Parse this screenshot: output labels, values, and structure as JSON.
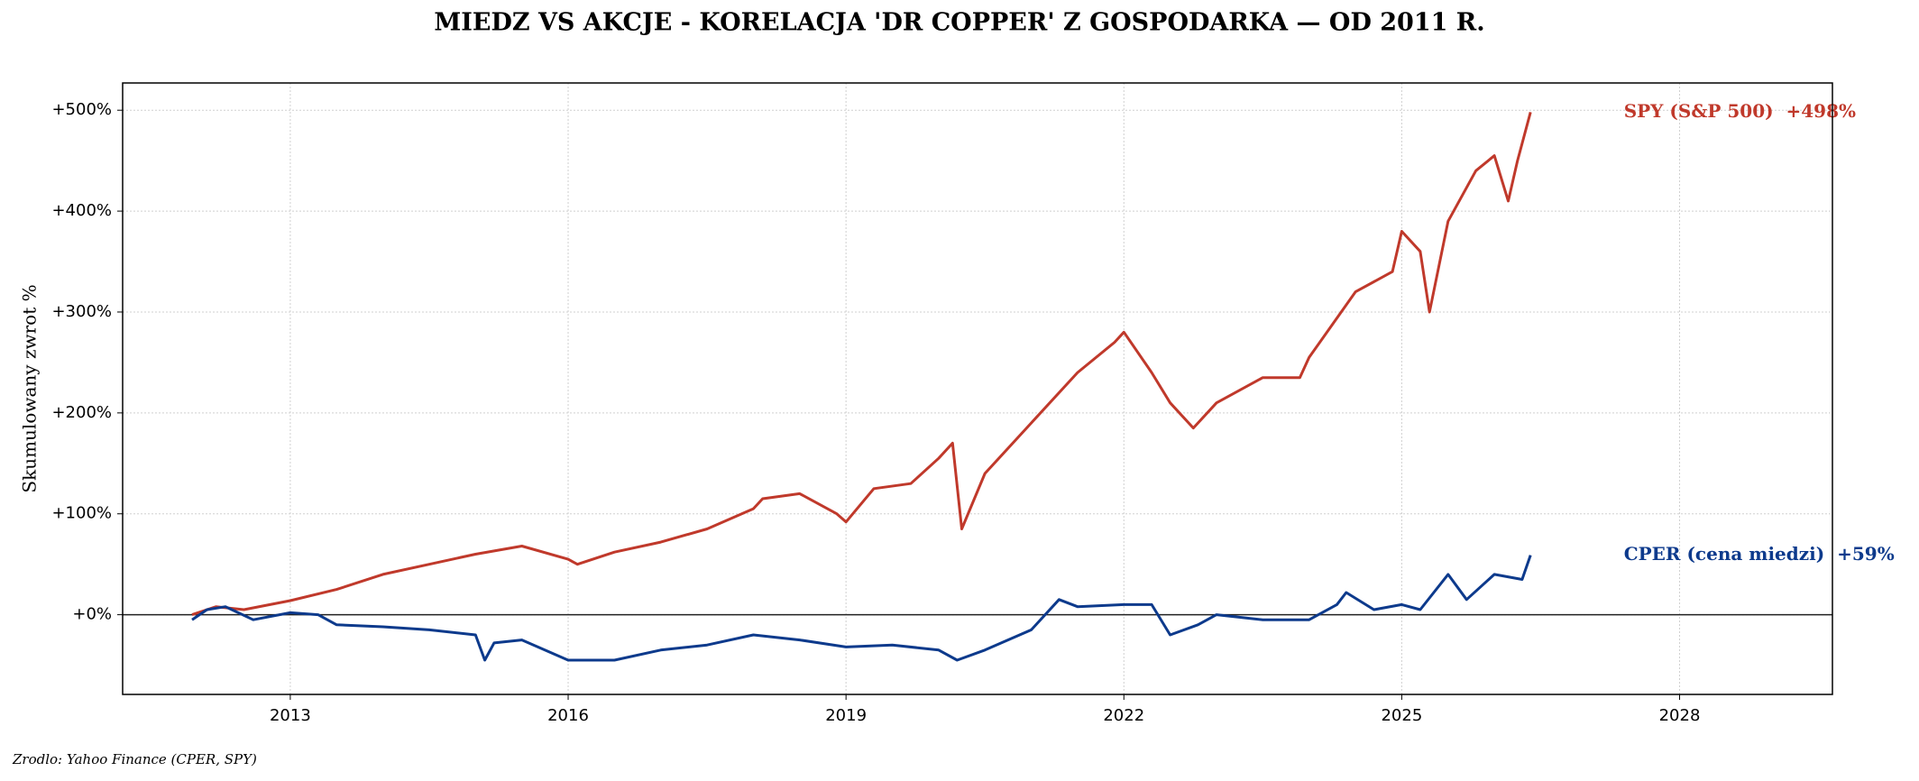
{
  "chart_data": {
    "type": "line",
    "title": "MIEDZ VS AKCJE - KORELACJA 'DR COPPER' Z GOSPODARKA — OD 2011 R.",
    "y_label": "Skumulowany zwrot %",
    "source": "Zrodlo: Yahoo Finance (CPER, SPY)",
    "xlim": [
      2011.19,
      2029.65
    ],
    "xticks": [
      2013,
      2016,
      2019,
      2022,
      2025,
      2028
    ],
    "ylim": [
      -79,
      527
    ],
    "yticks": [
      {
        "value": 0,
        "label": "+0%"
      },
      {
        "value": 100,
        "label": "+100%"
      },
      {
        "value": 200,
        "label": "+200%"
      },
      {
        "value": 300,
        "label": "+300%"
      },
      {
        "value": 400,
        "label": "+400%"
      },
      {
        "value": 500,
        "label": "+500%"
      }
    ],
    "grid": true,
    "series": [
      {
        "label": "SPY (S&P 500)  +498%",
        "color": "#c0392b",
        "x": [
          2011.94,
          2012.2,
          2012.5,
          2013.0,
          2013.5,
          2014.0,
          2014.5,
          2015.0,
          2015.5,
          2016.0,
          2016.1,
          2016.5,
          2017.0,
          2017.5,
          2018.0,
          2018.1,
          2018.5,
          2018.9,
          2019.0,
          2019.3,
          2019.7,
          2020.0,
          2020.15,
          2020.25,
          2020.5,
          2021.0,
          2021.5,
          2021.9,
          2022.0,
          2022.3,
          2022.5,
          2022.75,
          2023.0,
          2023.5,
          2023.9,
          2024.0,
          2024.5,
          2024.9,
          2025.0,
          2025.2,
          2025.3,
          2025.5,
          2025.8,
          2026.0,
          2026.15,
          2026.25,
          2026.39
        ],
        "values": [
          0,
          8,
          5,
          14,
          25,
          40,
          50,
          60,
          68,
          55,
          50,
          62,
          72,
          85,
          105,
          115,
          120,
          100,
          92,
          125,
          130,
          155,
          170,
          85,
          140,
          190,
          240,
          270,
          280,
          240,
          210,
          185,
          210,
          235,
          235,
          255,
          320,
          340,
          380,
          360,
          300,
          390,
          440,
          455,
          410,
          450,
          498
        ]
      },
      {
        "label": "CPER (cena miedzi)  +59%",
        "color": "#0d3a8c",
        "x": [
          2011.94,
          2012.1,
          2012.3,
          2012.6,
          2013.0,
          2013.3,
          2013.5,
          2014.0,
          2014.5,
          2015.0,
          2015.1,
          2015.2,
          2015.5,
          2016.0,
          2016.5,
          2017.0,
          2017.5,
          2018.0,
          2018.5,
          2019.0,
          2019.5,
          2020.0,
          2020.2,
          2020.5,
          2021.0,
          2021.3,
          2021.5,
          2022.0,
          2022.3,
          2022.5,
          2022.8,
          2023.0,
          2023.5,
          2024.0,
          2024.3,
          2024.4,
          2024.7,
          2025.0,
          2025.2,
          2025.5,
          2025.7,
          2026.0,
          2026.3,
          2026.39
        ],
        "values": [
          -5,
          5,
          8,
          -5,
          2,
          0,
          -10,
          -12,
          -15,
          -20,
          -45,
          -28,
          -25,
          -45,
          -45,
          -35,
          -30,
          -20,
          -25,
          -32,
          -30,
          -35,
          -45,
          -35,
          -15,
          15,
          8,
          10,
          10,
          -20,
          -10,
          0,
          -5,
          -5,
          10,
          22,
          5,
          10,
          5,
          40,
          15,
          40,
          35,
          59
        ]
      }
    ]
  }
}
